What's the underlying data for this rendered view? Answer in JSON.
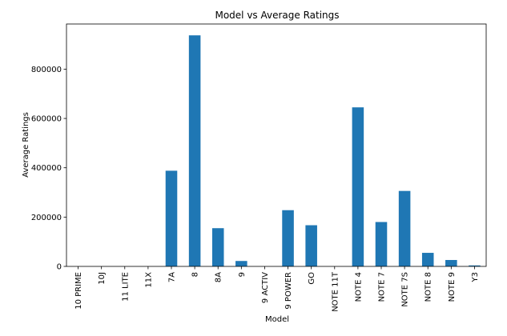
{
  "chart_data": {
    "type": "bar",
    "title": "Model vs Average Ratings",
    "xlabel": "Model",
    "ylabel": "Average Ratings",
    "categories": [
      "10 PRIME",
      "10J",
      "11 LITE",
      "11X",
      "7A",
      "8",
      "8A",
      "9",
      "9 ACTIV",
      "9 POWER",
      "GO",
      "NOTE 11T",
      "NOTE 4",
      "NOTE 7",
      "NOTE 7S",
      "NOTE 8",
      "NOTE 9",
      "Y3"
    ],
    "values": [
      0,
      0,
      0,
      0,
      388000,
      937000,
      155000,
      22000,
      0,
      228000,
      167000,
      0,
      645000,
      180000,
      306000,
      55000,
      26000,
      4000
    ],
    "ylim": [
      0,
      983000
    ],
    "yticks": [
      0,
      200000,
      400000,
      600000,
      800000
    ],
    "ytick_labels": [
      "0",
      "200000",
      "400000",
      "600000",
      "800000"
    ],
    "grid": false,
    "legend": "none",
    "bar_color": "#1f77b4"
  }
}
